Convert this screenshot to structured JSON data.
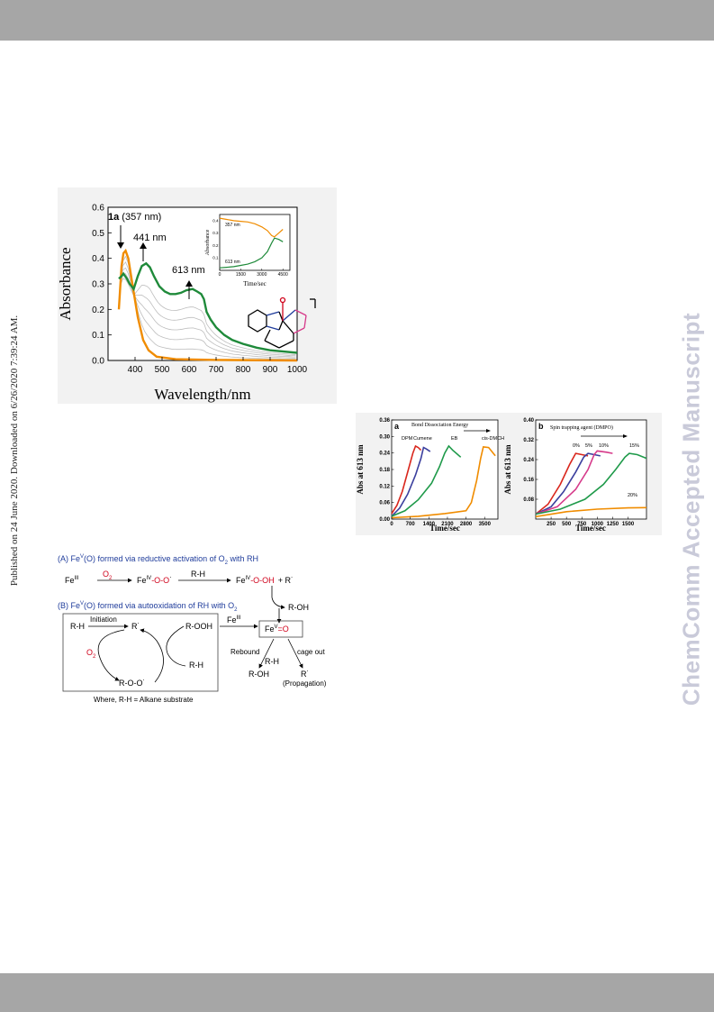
{
  "side_note": "Published on 24 June 2020. Downloaded on 6/26/2020 7:39:24 AM.",
  "watermark": "ChemComm Accepted Manuscript",
  "colors": {
    "band": "#a6a6a6",
    "orange": "#f08c00",
    "green": "#1f8a3a",
    "grey": "#bdbdbd",
    "watermark": "#c9cad9"
  },
  "chart_data": [
    {
      "type": "line",
      "xlabel": "Wavelength/nm",
      "ylabel": "Absorbance",
      "xlim": [
        300,
        1000
      ],
      "ylim": [
        0.0,
        0.6
      ],
      "xticks": [
        "400",
        "500",
        "600",
        "700",
        "800",
        "900",
        "1000"
      ],
      "yticks": [
        "0.0",
        "0.1",
        "0.2",
        "0.3",
        "0.4",
        "0.5",
        "0.6"
      ],
      "annotations": {
        "a1_bold": "1a",
        "a1_rest": " (357 nm)",
        "a2": "441 nm",
        "a3": "613 nm"
      },
      "series": [
        {
          "color": "#f08c00",
          "points": [
            [
              340,
              0.2
            ],
            [
              350,
              0.37
            ],
            [
              357,
              0.42
            ],
            [
              365,
              0.43
            ],
            [
              375,
              0.4
            ],
            [
              390,
              0.3
            ],
            [
              410,
              0.17
            ],
            [
              430,
              0.08
            ],
            [
              450,
              0.04
            ],
            [
              480,
              0.015
            ],
            [
              550,
              0.005
            ],
            [
              700,
              0.002
            ],
            [
              1000,
              0.0
            ]
          ]
        },
        {
          "color": "#1f8a3a",
          "points": [
            [
              340,
              0.32
            ],
            [
              350,
              0.33
            ],
            [
              357,
              0.34
            ],
            [
              370,
              0.32
            ],
            [
              380,
              0.3
            ],
            [
              395,
              0.28
            ],
            [
              410,
              0.33
            ],
            [
              425,
              0.37
            ],
            [
              441,
              0.38
            ],
            [
              455,
              0.365
            ],
            [
              470,
              0.33
            ],
            [
              490,
              0.29
            ],
            [
              510,
              0.27
            ],
            [
              530,
              0.26
            ],
            [
              550,
              0.26
            ],
            [
              570,
              0.265
            ],
            [
              590,
              0.275
            ],
            [
              613,
              0.28
            ],
            [
              630,
              0.27
            ],
            [
              645,
              0.26
            ],
            [
              655,
              0.24
            ],
            [
              665,
              0.19
            ],
            [
              680,
              0.16
            ],
            [
              700,
              0.13
            ],
            [
              730,
              0.1
            ],
            [
              760,
              0.08
            ],
            [
              800,
              0.065
            ],
            [
              850,
              0.05
            ],
            [
              900,
              0.04
            ],
            [
              950,
              0.035
            ],
            [
              1000,
              0.03
            ]
          ]
        }
      ],
      "grey_traces": 5,
      "inset": {
        "xlabel": "Time/sec",
        "ylabel": "Absorbance",
        "xticks": [
          "0",
          "1500",
          "3000",
          "4500"
        ],
        "yticks": [
          "0.1",
          "0.2",
          "0.3",
          "0.4"
        ],
        "label_top": "357 nm",
        "label_bottom": "613 nm",
        "xlim": [
          0,
          5000
        ],
        "ylim": [
          0.0,
          0.45
        ],
        "series": [
          {
            "color": "#f08c00",
            "points": [
              [
                0,
                0.42
              ],
              [
                500,
                0.41
              ],
              [
                1000,
                0.4
              ],
              [
                1500,
                0.395
              ],
              [
                2000,
                0.39
              ],
              [
                2500,
                0.375
              ],
              [
                3000,
                0.35
              ],
              [
                3400,
                0.32
              ],
              [
                3700,
                0.28
              ],
              [
                3900,
                0.27
              ],
              [
                4200,
                0.3
              ],
              [
                4500,
                0.33
              ]
            ]
          },
          {
            "color": "#1f8a3a",
            "points": [
              [
                0,
                0.02
              ],
              [
                500,
                0.025
              ],
              [
                1000,
                0.03
              ],
              [
                1500,
                0.04
              ],
              [
                2000,
                0.05
              ],
              [
                2500,
                0.07
              ],
              [
                3000,
                0.1
              ],
              [
                3400,
                0.15
              ],
              [
                3700,
                0.22
              ],
              [
                3900,
                0.26
              ],
              [
                4200,
                0.25
              ],
              [
                4500,
                0.23
              ]
            ]
          }
        ]
      }
    },
    {
      "type": "line",
      "panel": "a",
      "title": "Bond Dissociation Energy",
      "xlabel": "Time/sec",
      "ylabel": "Abs at 613 nm",
      "xlim": [
        0,
        4000
      ],
      "ylim": [
        0.0,
        0.36
      ],
      "xticks": [
        "0",
        "700",
        "1400",
        "2100",
        "2800",
        "3500"
      ],
      "yticks": [
        "0.00",
        "0.06",
        "0.12",
        "0.18",
        "0.24",
        "0.30",
        "0.36"
      ],
      "series": [
        {
          "name": "DPM",
          "color": "#d9261c",
          "points": [
            [
              0,
              0.02
            ],
            [
              200,
              0.05
            ],
            [
              400,
              0.1
            ],
            [
              600,
              0.17
            ],
            [
              800,
              0.24
            ],
            [
              900,
              0.265
            ],
            [
              1000,
              0.26
            ],
            [
              1100,
              0.25
            ]
          ]
        },
        {
          "name": "Cumene",
          "color": "#3b3f9e",
          "points": [
            [
              0,
              0.01
            ],
            [
              300,
              0.04
            ],
            [
              600,
              0.09
            ],
            [
              900,
              0.16
            ],
            [
              1100,
              0.22
            ],
            [
              1200,
              0.26
            ],
            [
              1300,
              0.255
            ],
            [
              1450,
              0.245
            ]
          ]
        },
        {
          "name": "EB",
          "color": "#1f9a4a",
          "points": [
            [
              0,
              0.01
            ],
            [
              500,
              0.03
            ],
            [
              1000,
              0.07
            ],
            [
              1500,
              0.13
            ],
            [
              1800,
              0.19
            ],
            [
              2000,
              0.24
            ],
            [
              2150,
              0.265
            ],
            [
              2300,
              0.25
            ],
            [
              2600,
              0.225
            ]
          ]
        },
        {
          "name": "cis-DMCH",
          "color": "#f08c00",
          "points": [
            [
              0,
              0.005
            ],
            [
              1000,
              0.01
            ],
            [
              2000,
              0.02
            ],
            [
              2800,
              0.03
            ],
            [
              3000,
              0.06
            ],
            [
              3200,
              0.14
            ],
            [
              3350,
              0.22
            ],
            [
              3450,
              0.262
            ],
            [
              3650,
              0.26
            ],
            [
              3900,
              0.23
            ]
          ]
        }
      ]
    },
    {
      "type": "line",
      "panel": "b",
      "title": "Spin trapping agent (DMPO)",
      "xlabel": "Time/sec",
      "ylabel": "Abs at 613 nm",
      "xlim": [
        0,
        1800
      ],
      "ylim": [
        0.0,
        0.4
      ],
      "xticks": [
        "250",
        "500",
        "750",
        "1000",
        "1250",
        "1500"
      ],
      "yticks": [
        "0.08",
        "0.16",
        "0.24",
        "0.32",
        "0.40"
      ],
      "series": [
        {
          "name": "0%",
          "color": "#d9261c",
          "points": [
            [
              0,
              0.02
            ],
            [
              200,
              0.06
            ],
            [
              400,
              0.14
            ],
            [
              550,
              0.22
            ],
            [
              650,
              0.265
            ],
            [
              750,
              0.26
            ],
            [
              850,
              0.255
            ]
          ]
        },
        {
          "name": "5%",
          "color": "#3b3f9e",
          "points": [
            [
              0,
              0.02
            ],
            [
              250,
              0.05
            ],
            [
              450,
              0.11
            ],
            [
              650,
              0.19
            ],
            [
              780,
              0.25
            ],
            [
              850,
              0.265
            ],
            [
              950,
              0.26
            ],
            [
              1050,
              0.255
            ]
          ]
        },
        {
          "name": "10%",
          "color": "#d63a8a",
          "points": [
            [
              0,
              0.02
            ],
            [
              350,
              0.05
            ],
            [
              650,
              0.12
            ],
            [
              850,
              0.2
            ],
            [
              950,
              0.26
            ],
            [
              1000,
              0.275
            ],
            [
              1150,
              0.27
            ],
            [
              1250,
              0.265
            ]
          ]
        },
        {
          "name": "15%",
          "color": "#1f9a4a",
          "points": [
            [
              0,
              0.02
            ],
            [
              400,
              0.04
            ],
            [
              800,
              0.08
            ],
            [
              1100,
              0.14
            ],
            [
              1300,
              0.2
            ],
            [
              1450,
              0.25
            ],
            [
              1520,
              0.265
            ],
            [
              1650,
              0.26
            ],
            [
              1800,
              0.245
            ]
          ]
        },
        {
          "name": "20%",
          "color": "#f08c00",
          "points": [
            [
              0,
              0.01
            ],
            [
              500,
              0.03
            ],
            [
              1000,
              0.04
            ],
            [
              1500,
              0.045
            ],
            [
              1800,
              0.046
            ]
          ]
        }
      ]
    }
  ],
  "scheme": {
    "a_title_pre": "(A) Fe",
    "a_title_sup": "V",
    "a_title_post": "(O) formed via reductive activation of O",
    "a_title_sub": "2",
    "a_title_end": " with RH",
    "fe": "Fe",
    "fe_iii": "III",
    "fe_iv": "IV",
    "o2": "O",
    "two": "2",
    "arrow_rh": "R-H",
    "oo_rad": "-O-O",
    "ooh": "-O-OH",
    "plus_r": "+ R",
    "roh": "R-OH",
    "b_title_pre": "(B) Fe",
    "b_title_sup": "V",
    "b_title_post": "(O) formed via autooxidation of RH with O",
    "b_title_sub": "2",
    "rh": "R-H",
    "initiation": "Initiation",
    "r_rad": "R",
    "rooh": "R-OOH",
    "roo_rad": "R-O-O",
    "fe_v_o": "=O",
    "fe_v": "V",
    "rebound": "Rebound",
    "cage_out": "cage out",
    "propagation": "(Propagation)",
    "footnote": "Where, R-H = Alkane substrate",
    "dot": "˙"
  }
}
